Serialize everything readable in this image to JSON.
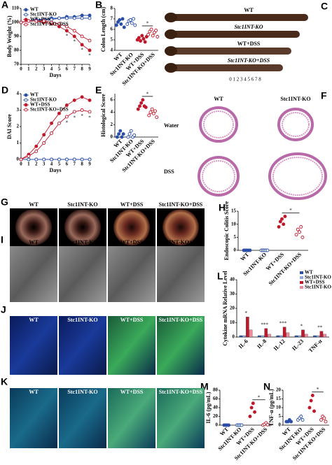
{
  "chart_data": [
    {
      "type": "line",
      "panel": "A",
      "ylabel": "Body Weight (%)",
      "xlabel": "Days",
      "significance": "*",
      "x": [
        0,
        1,
        2,
        3,
        4,
        5,
        6,
        7,
        8,
        9
      ],
      "xlim": [
        0,
        9
      ],
      "xticks": [
        0,
        1,
        2,
        3,
        4,
        5,
        6,
        7,
        8,
        9
      ],
      "ylim": [
        70,
        110
      ],
      "yticks": [
        70,
        80,
        90,
        100,
        110
      ],
      "series": [
        {
          "name": "WT",
          "color": "#2a4fa8",
          "filled": true,
          "values": [
            100,
            101,
            102,
            102,
            103,
            103,
            104,
            104,
            105,
            105
          ]
        },
        {
          "name": "Stc1INT-KO",
          "color": "#2a4fa8",
          "filled": false,
          "values": [
            100,
            101,
            101,
            102,
            102,
            103,
            103,
            103,
            103,
            103
          ]
        },
        {
          "name": "WT+DSS",
          "color": "#c0182a",
          "filled": true,
          "values": [
            100,
            101,
            101,
            100,
            99,
            97,
            94,
            90,
            84,
            80
          ]
        },
        {
          "name": "Stc1INT-KO+DSS",
          "color": "#c0182a",
          "filled": false,
          "values": [
            100,
            101,
            101,
            101,
            100,
            99,
            97,
            94,
            90,
            87
          ]
        }
      ]
    },
    {
      "type": "dot",
      "panel": "B",
      "ylabel": "Colon Length (cm)",
      "significance": "*",
      "categories": [
        "WT",
        "Stc1INT-KO",
        "WT+DSS",
        "Stc1INT-KO+DSS"
      ],
      "colors": [
        "#2a4fa8",
        "#2a4fa8",
        "#c0182a",
        "#c0182a"
      ],
      "filled": [
        true,
        false,
        true,
        false
      ],
      "ylim": [
        4,
        8
      ],
      "yticks": [
        4,
        5,
        6,
        7,
        8
      ],
      "values": [
        [
          6.4,
          6.7,
          6.9,
          6.5,
          7.0,
          6.2
        ],
        [
          6.5,
          6.8,
          6.9,
          6.6,
          7.0,
          6.4
        ],
        [
          5.0,
          5.2,
          4.9,
          5.4,
          5.1,
          4.8,
          5.3
        ],
        [
          5.5,
          5.8,
          6.0,
          5.4,
          5.7,
          5.9,
          5.3
        ]
      ]
    },
    {
      "type": "line",
      "panel": "D",
      "ylabel": "DAI Score",
      "xlabel": "Days",
      "significance": "*",
      "x": [
        0,
        1,
        2,
        3,
        4,
        5,
        6,
        7,
        8,
        9
      ],
      "xlim": [
        0,
        9
      ],
      "xticks": [
        0,
        1,
        2,
        3,
        4,
        5,
        6,
        7,
        8,
        9
      ],
      "ylim": [
        0,
        4
      ],
      "yticks": [
        0,
        1,
        2,
        3,
        4
      ],
      "series": [
        {
          "name": "WT",
          "color": "#2a4fa8",
          "filled": true,
          "values": [
            0,
            0,
            0,
            0,
            0,
            0,
            0,
            0,
            0,
            0
          ]
        },
        {
          "name": "Stc1INT-KO",
          "color": "#2a4fa8",
          "filled": false,
          "values": [
            0,
            0,
            0,
            0,
            0,
            0,
            0,
            0,
            0,
            0
          ]
        },
        {
          "name": "WT+DSS",
          "color": "#c0182a",
          "filled": true,
          "values": [
            0,
            0.3,
            0.8,
            1.5,
            2.2,
            2.8,
            3.3,
            3.6,
            3.8,
            3.6
          ]
        },
        {
          "name": "Stc1INT-KO+DSS",
          "color": "#c0182a",
          "filled": false,
          "values": [
            0,
            0.2,
            0.5,
            1.0,
            1.6,
            2.2,
            2.6,
            2.9,
            3.0,
            2.9
          ]
        }
      ]
    },
    {
      "type": "dot",
      "panel": "E",
      "ylabel": "Histological Score",
      "significance": "*",
      "categories": [
        "WT",
        "Stc1INT-KO",
        "WT+DSS",
        "Stc1INT-KO+DSS"
      ],
      "colors": [
        "#2a4fa8",
        "#2a4fa8",
        "#c0182a",
        "#c0182a"
      ],
      "filled": [
        true,
        false,
        true,
        false
      ],
      "ylim": [
        0,
        7
      ],
      "yticks": [
        0,
        2,
        4,
        6
      ],
      "values": [
        [
          0,
          0.5,
          1,
          0,
          0.5
        ],
        [
          0,
          0.5,
          1,
          0,
          0.3
        ],
        [
          4.5,
          5,
          5.5,
          6,
          5,
          4.8
        ],
        [
          3.5,
          4,
          4.5,
          3.8,
          4.2,
          3.2
        ]
      ]
    },
    {
      "type": "dot",
      "panel": "H",
      "ylabel": "Endoscopic Colitis Score",
      "significance": "*",
      "categories": [
        "WT",
        "Stc1INT-KO",
        "WT+DSS",
        "Stc1INT-KO+DSS"
      ],
      "colors": [
        "#2a4fa8",
        "#2a4fa8",
        "#c0182a",
        "#c0182a"
      ],
      "filled": [
        true,
        false,
        true,
        false
      ],
      "ylim": [
        0,
        15
      ],
      "yticks": [
        0,
        5,
        10,
        15
      ],
      "values": [
        [
          0,
          0,
          0,
          0,
          0
        ],
        [
          0,
          0,
          0,
          0,
          0
        ],
        [
          9,
          11,
          12,
          10,
          13
        ],
        [
          6,
          8,
          7,
          9,
          5
        ]
      ]
    },
    {
      "type": "bar",
      "panel": "L",
      "ylabel": "Cytokine mRNA Relative Level",
      "categories": [
        "IL-6",
        "IL-8",
        "IL-12",
        "IL-23",
        "TNF-α"
      ],
      "significance": [
        "*",
        "***",
        "***",
        "*",
        "**"
      ],
      "ylim": [
        0,
        40
      ],
      "yticks": [
        0,
        10,
        20,
        30,
        40
      ],
      "series": [
        {
          "name": "WT",
          "color": "#2a4fa8",
          "values": [
            1,
            1,
            1,
            1,
            1
          ]
        },
        {
          "name": "Stc1INT-KO",
          "color": "#8fa8e0",
          "values": [
            1,
            1,
            1,
            1,
            1
          ]
        },
        {
          "name": "WT+DSS",
          "color": "#c0182a",
          "values": [
            14,
            6,
            7,
            5,
            4
          ]
        },
        {
          "name": "Stc1INT-KO+DSS",
          "color": "#f08a9a",
          "values": [
            5,
            2,
            3,
            2,
            2
          ]
        }
      ]
    },
    {
      "type": "dot",
      "panel": "M",
      "ylabel": "IL-6 (pg/mL)",
      "significance": "*",
      "categories": [
        "WT",
        "Stc1INT-KO",
        "WT+DSS",
        "Stc1INT-KO+DSS"
      ],
      "colors": [
        "#2a4fa8",
        "#2a4fa8",
        "#c0182a",
        "#c0182a"
      ],
      "filled": [
        true,
        false,
        true,
        false
      ],
      "ylim": [
        0,
        80
      ],
      "yticks": [
        0,
        20,
        40,
        60,
        80
      ],
      "values": [
        [
          0,
          0,
          0,
          0
        ],
        [
          0,
          0,
          0,
          0
        ],
        [
          20,
          40,
          50,
          30
        ],
        [
          0,
          2,
          5,
          1
        ]
      ]
    },
    {
      "type": "dot",
      "panel": "N",
      "ylabel": "TNF-α (pg/mL)",
      "significance": "*",
      "categories": [
        "WT",
        "Stc1INT-KO",
        "WT+DSS",
        "Stc1INT-KO+DSS"
      ],
      "colors": [
        "#2a4fa8",
        "#2a4fa8",
        "#c0182a",
        "#c0182a"
      ],
      "filled": [
        true,
        false,
        true,
        false
      ],
      "ylim": [
        0,
        20
      ],
      "yticks": [
        0,
        5,
        10,
        15,
        20
      ],
      "values": [
        [
          2,
          2,
          3,
          2
        ],
        [
          3,
          4,
          5,
          3
        ],
        [
          10,
          14,
          17,
          8
        ],
        [
          3,
          5,
          4,
          2
        ]
      ]
    }
  ],
  "image_panels": [
    {
      "panel": "C",
      "labels": [
        "WT",
        "Stc1INT-KO",
        "WT+DSS",
        "Stc1INT-KO+DSS"
      ],
      "ruler": "0 1 2 3 4 5 6 7 8"
    },
    {
      "panel": "F",
      "labels": [
        "WT",
        "Stc1INT-KO"
      ],
      "rows": [
        "Water",
        "DSS"
      ]
    },
    {
      "panel": "G",
      "labels": [
        "WT",
        "Stc1INT-KO",
        "WT+DSS",
        "Stc1INT-KO+DSS"
      ]
    },
    {
      "panel": "I",
      "labels": [
        "WT",
        "Stc1INT-KO",
        "WT+DSS",
        "Stc1INT-KO+DSS"
      ]
    },
    {
      "panel": "J",
      "labels": [
        "WT",
        "Stc1INT-KO",
        "WT+DSS",
        "Stc1INT-KO+DSS"
      ]
    },
    {
      "panel": "K",
      "labels": [
        "WT",
        "Stc1INT-KO",
        "WT+DSS",
        "Stc1INT-KO+DSS"
      ]
    }
  ]
}
